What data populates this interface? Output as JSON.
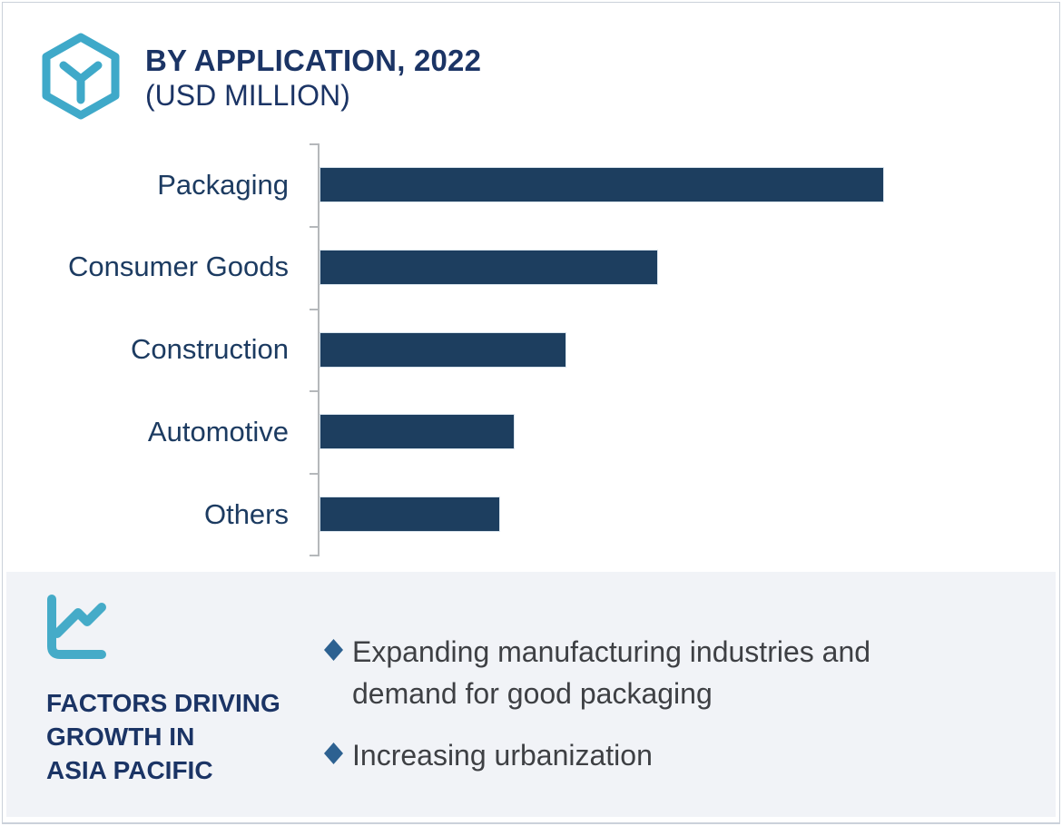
{
  "header": {
    "icon": "hexagon-box-icon",
    "title_line1": "BY APPLICATION, 2022",
    "title_line2": "(USD MILLION)"
  },
  "chart_data": {
    "type": "bar",
    "orientation": "horizontal",
    "title": "BY APPLICATION, 2022 (USD MILLION)",
    "xlabel": "",
    "ylabel": "",
    "unit": "USD Million",
    "categories": [
      "Packaging",
      "Consumer Goods",
      "Construction",
      "Automotive",
      "Others"
    ],
    "values": [
      100,
      59.8,
      43.5,
      34.4,
      31.8
    ],
    "value_axis_labels_visible": false,
    "values_are_relative_estimates": true,
    "legend": false,
    "gridlines": false,
    "bar_color": "#1d3e5f",
    "axis_color": "#b5b8bb",
    "label_color": "#1c3b61"
  },
  "panel": {
    "icon": "trend-chart-icon",
    "heading_lines": [
      "FACTORS DRIVING",
      "GROWTH IN",
      "ASIA PACIFIC"
    ],
    "bullets": [
      "Expanding manufacturing industries and demand for good packaging",
      "Increasing urbanization"
    ],
    "bullet_marker": "diamond-icon",
    "background": "#f1f3f7"
  },
  "colors": {
    "accent_teal": "#3fa9c9",
    "heading_navy": "#1b3465",
    "bar_navy": "#1d3e5f",
    "diamond_blue": "#2d6191",
    "body_text": "#3e4044",
    "frame_border": "#cbd1da"
  }
}
